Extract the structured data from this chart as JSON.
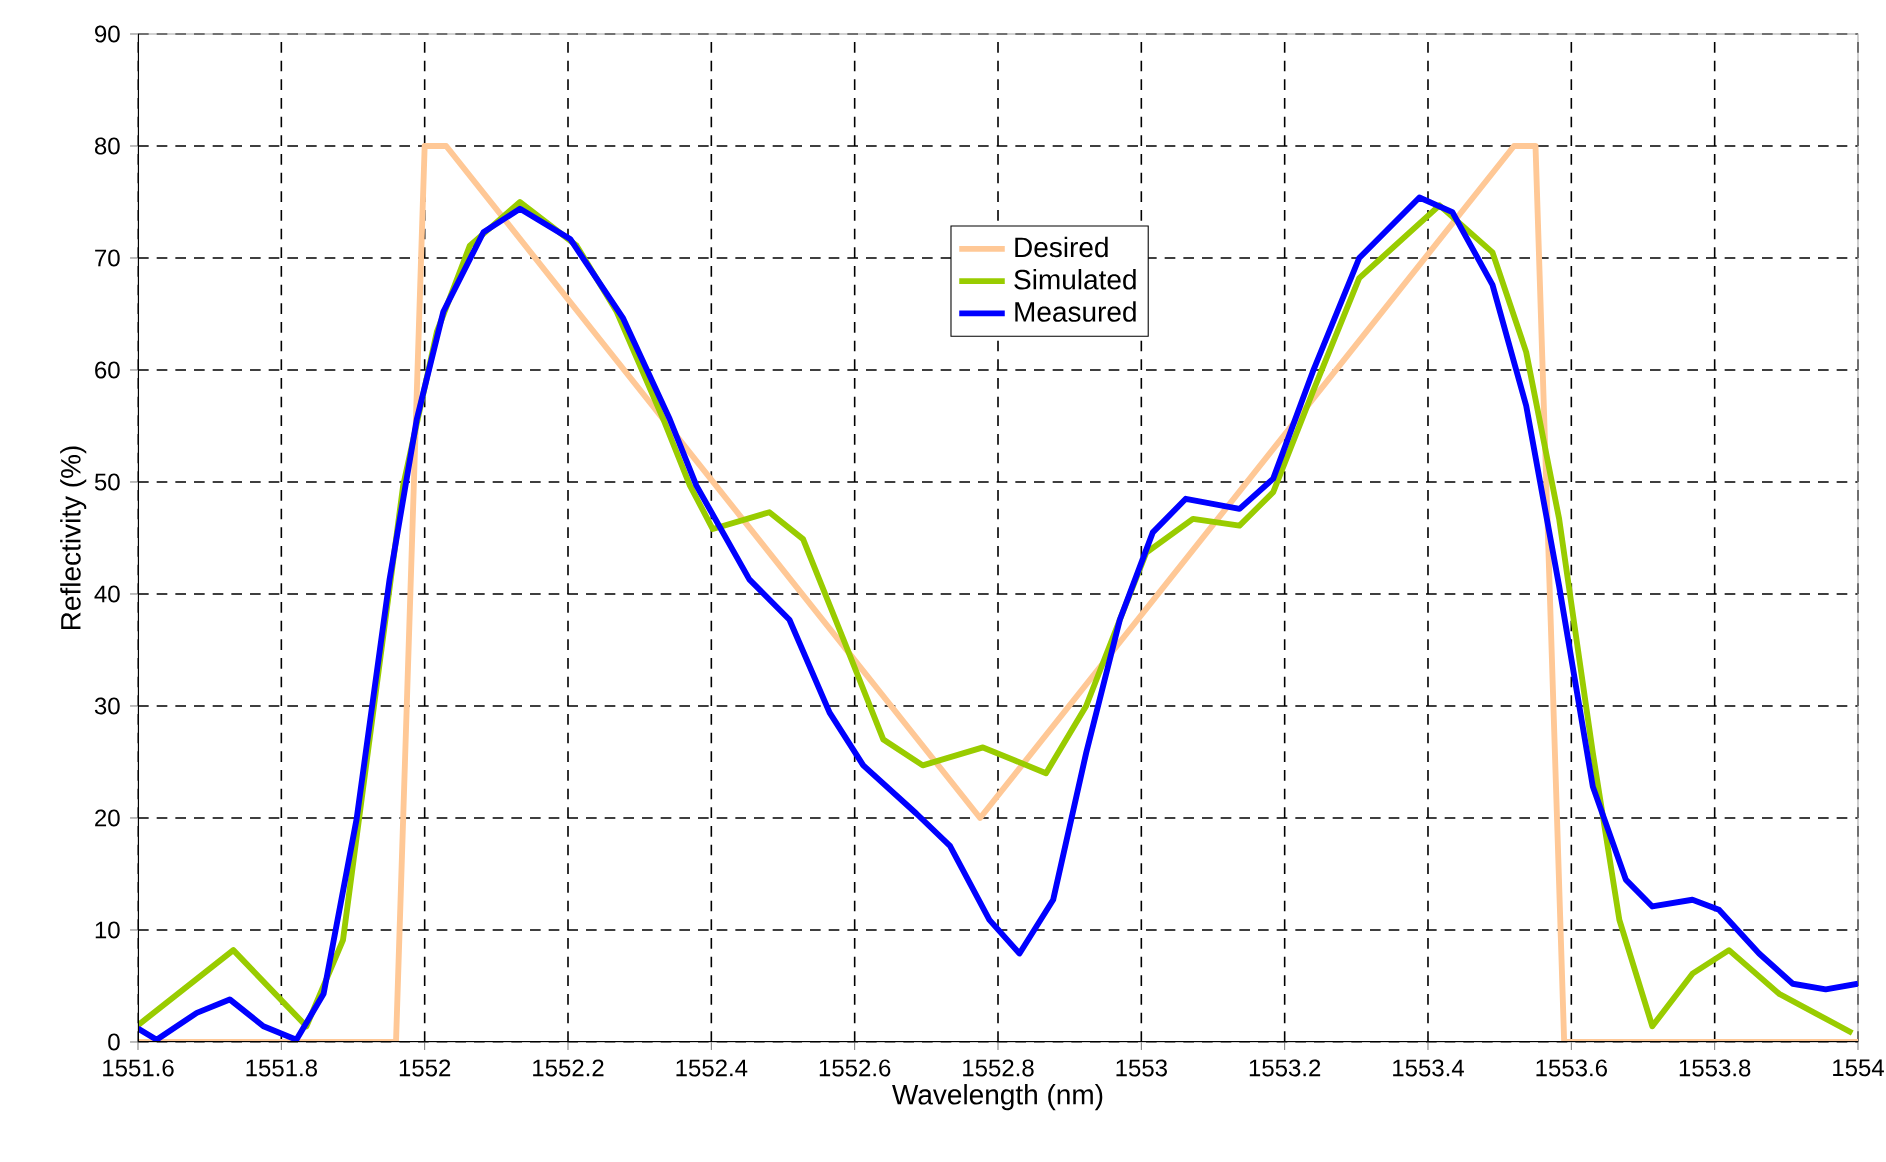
{
  "chart_data": {
    "type": "line",
    "xlabel": "Wavelength (nm)",
    "ylabel": "Reflectivity (%)",
    "xlim": [
      1551.6,
      1554
    ],
    "ylim": [
      0,
      90
    ],
    "xticks": [
      1551.6,
      1551.8,
      1552,
      1552.2,
      1552.4,
      1552.6,
      1552.8,
      1553,
      1553.2,
      1553.4,
      1553.6,
      1553.8,
      1554
    ],
    "yticks": [
      0,
      10,
      20,
      30,
      40,
      50,
      60,
      70,
      80,
      90
    ],
    "grid": true,
    "legend": "top",
    "line_style": "solid",
    "marker": "none",
    "series": [
      {
        "name": "Desired",
        "color": "#ffc896",
        "x": [
          1551.6,
          1551.96,
          1552.0,
          1552.03,
          1552.775,
          1553.52,
          1553.55,
          1553.59,
          1554
        ],
        "values": [
          0,
          0,
          80,
          80,
          20,
          80,
          80,
          0,
          0
        ]
      },
      {
        "name": "Simulated",
        "color": "#99cc00",
        "x": [
          1551.6,
          1551.733,
          1551.835,
          1551.886,
          1551.933,
          1551.97,
          1552.017,
          1552.063,
          1552.133,
          1552.212,
          1552.268,
          1552.333,
          1552.37,
          1552.402,
          1552.481,
          1552.528,
          1552.584,
          1552.64,
          1552.695,
          1552.779,
          1552.867,
          1552.923,
          1552.97,
          1553.007,
          1553.072,
          1553.137,
          1553.184,
          1553.239,
          1553.304,
          1553.416,
          1553.49,
          1553.537,
          1553.583,
          1553.63,
          1553.667,
          1553.713,
          1553.769,
          1553.82,
          1553.89,
          1553.992
        ],
        "values": [
          1.5,
          8.2,
          1.4,
          9.1,
          31.8,
          49.7,
          63.4,
          71.1,
          75.0,
          71.1,
          65.2,
          55.6,
          49.7,
          45.8,
          47.3,
          44.9,
          36.0,
          27.0,
          24.7,
          26.3,
          24.0,
          30.0,
          37.7,
          43.7,
          46.7,
          46.1,
          49.1,
          58.0,
          68.2,
          74.7,
          70.5,
          61.6,
          46.7,
          25.8,
          10.9,
          1.4,
          6.1,
          8.2,
          4.3,
          0.8
        ]
      },
      {
        "name": "Measured",
        "color": "#0000ff",
        "x": [
          1551.6,
          1551.626,
          1551.682,
          1551.728,
          1551.775,
          1551.821,
          1551.859,
          1551.905,
          1551.951,
          1551.989,
          1552.026,
          1552.082,
          1552.133,
          1552.203,
          1552.277,
          1552.342,
          1552.379,
          1552.453,
          1552.509,
          1552.565,
          1552.612,
          1552.686,
          1552.733,
          1552.788,
          1552.83,
          1552.877,
          1552.923,
          1552.97,
          1553.016,
          1553.062,
          1553.137,
          1553.184,
          1553.239,
          1553.304,
          1553.388,
          1553.434,
          1553.49,
          1553.537,
          1553.583,
          1553.63,
          1553.676,
          1553.713,
          1553.769,
          1553.806,
          1553.862,
          1553.909,
          1553.955,
          1554
        ],
        "values": [
          1.2,
          0.2,
          2.6,
          3.8,
          1.4,
          0.2,
          4.3,
          19.9,
          41.3,
          55.6,
          65.2,
          72.3,
          74.4,
          71.7,
          64.6,
          55.6,
          49.7,
          41.3,
          37.7,
          29.4,
          24.7,
          20.4,
          17.5,
          10.9,
          7.9,
          12.7,
          25.8,
          37.7,
          45.5,
          48.5,
          47.6,
          50.3,
          59.8,
          70.0,
          75.4,
          74.1,
          67.6,
          56.8,
          40.7,
          22.8,
          14.5,
          12.1,
          12.7,
          11.8,
          7.9,
          5.2,
          4.7,
          5.2
        ]
      }
    ]
  }
}
